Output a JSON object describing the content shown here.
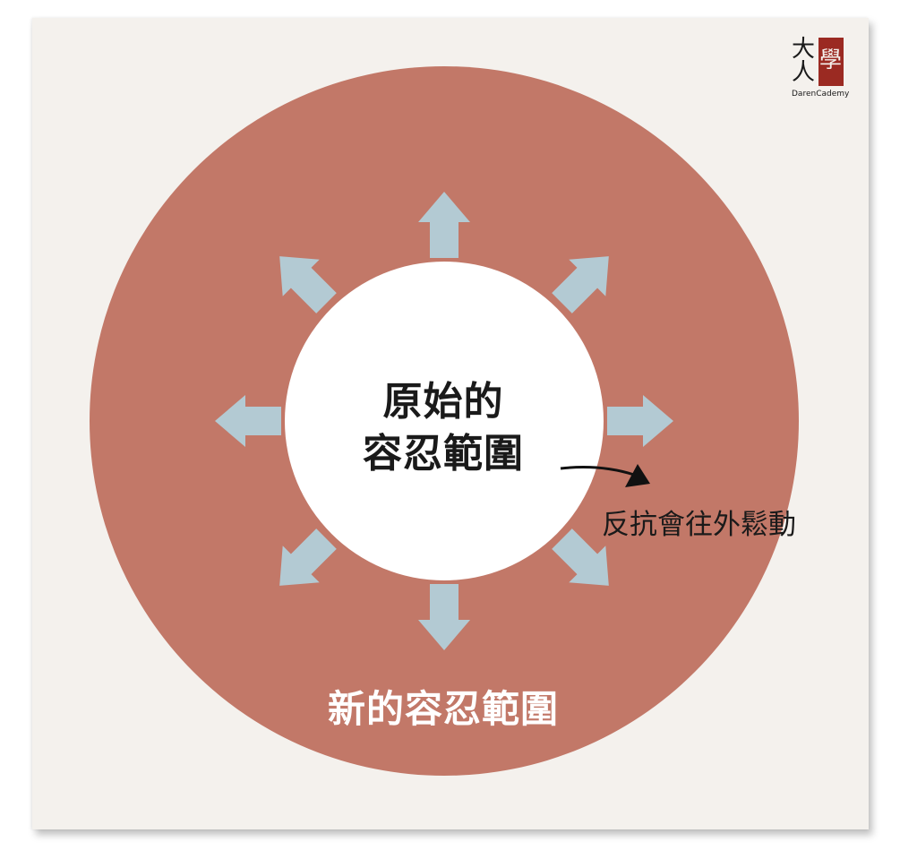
{
  "logo": {
    "glyph_1": "大",
    "glyph_2": "人",
    "glyph_red": "學",
    "caption": "DarenCademy"
  },
  "diagram": {
    "inner_label_lines": [
      "原始的",
      "容忍範圍"
    ],
    "outer_label": "新的容忍範圍",
    "annotation": "反抗會往外鬆動",
    "colors": {
      "outer_circle": "#c27868",
      "inner_circle": "#ffffff",
      "arrows": "#b3cad3",
      "annotation_arrow": "#111111",
      "background": "#f4f1ed"
    },
    "arrow_directions": [
      "up",
      "up-right",
      "right",
      "down-right",
      "down",
      "down-left",
      "left",
      "up-left"
    ]
  }
}
